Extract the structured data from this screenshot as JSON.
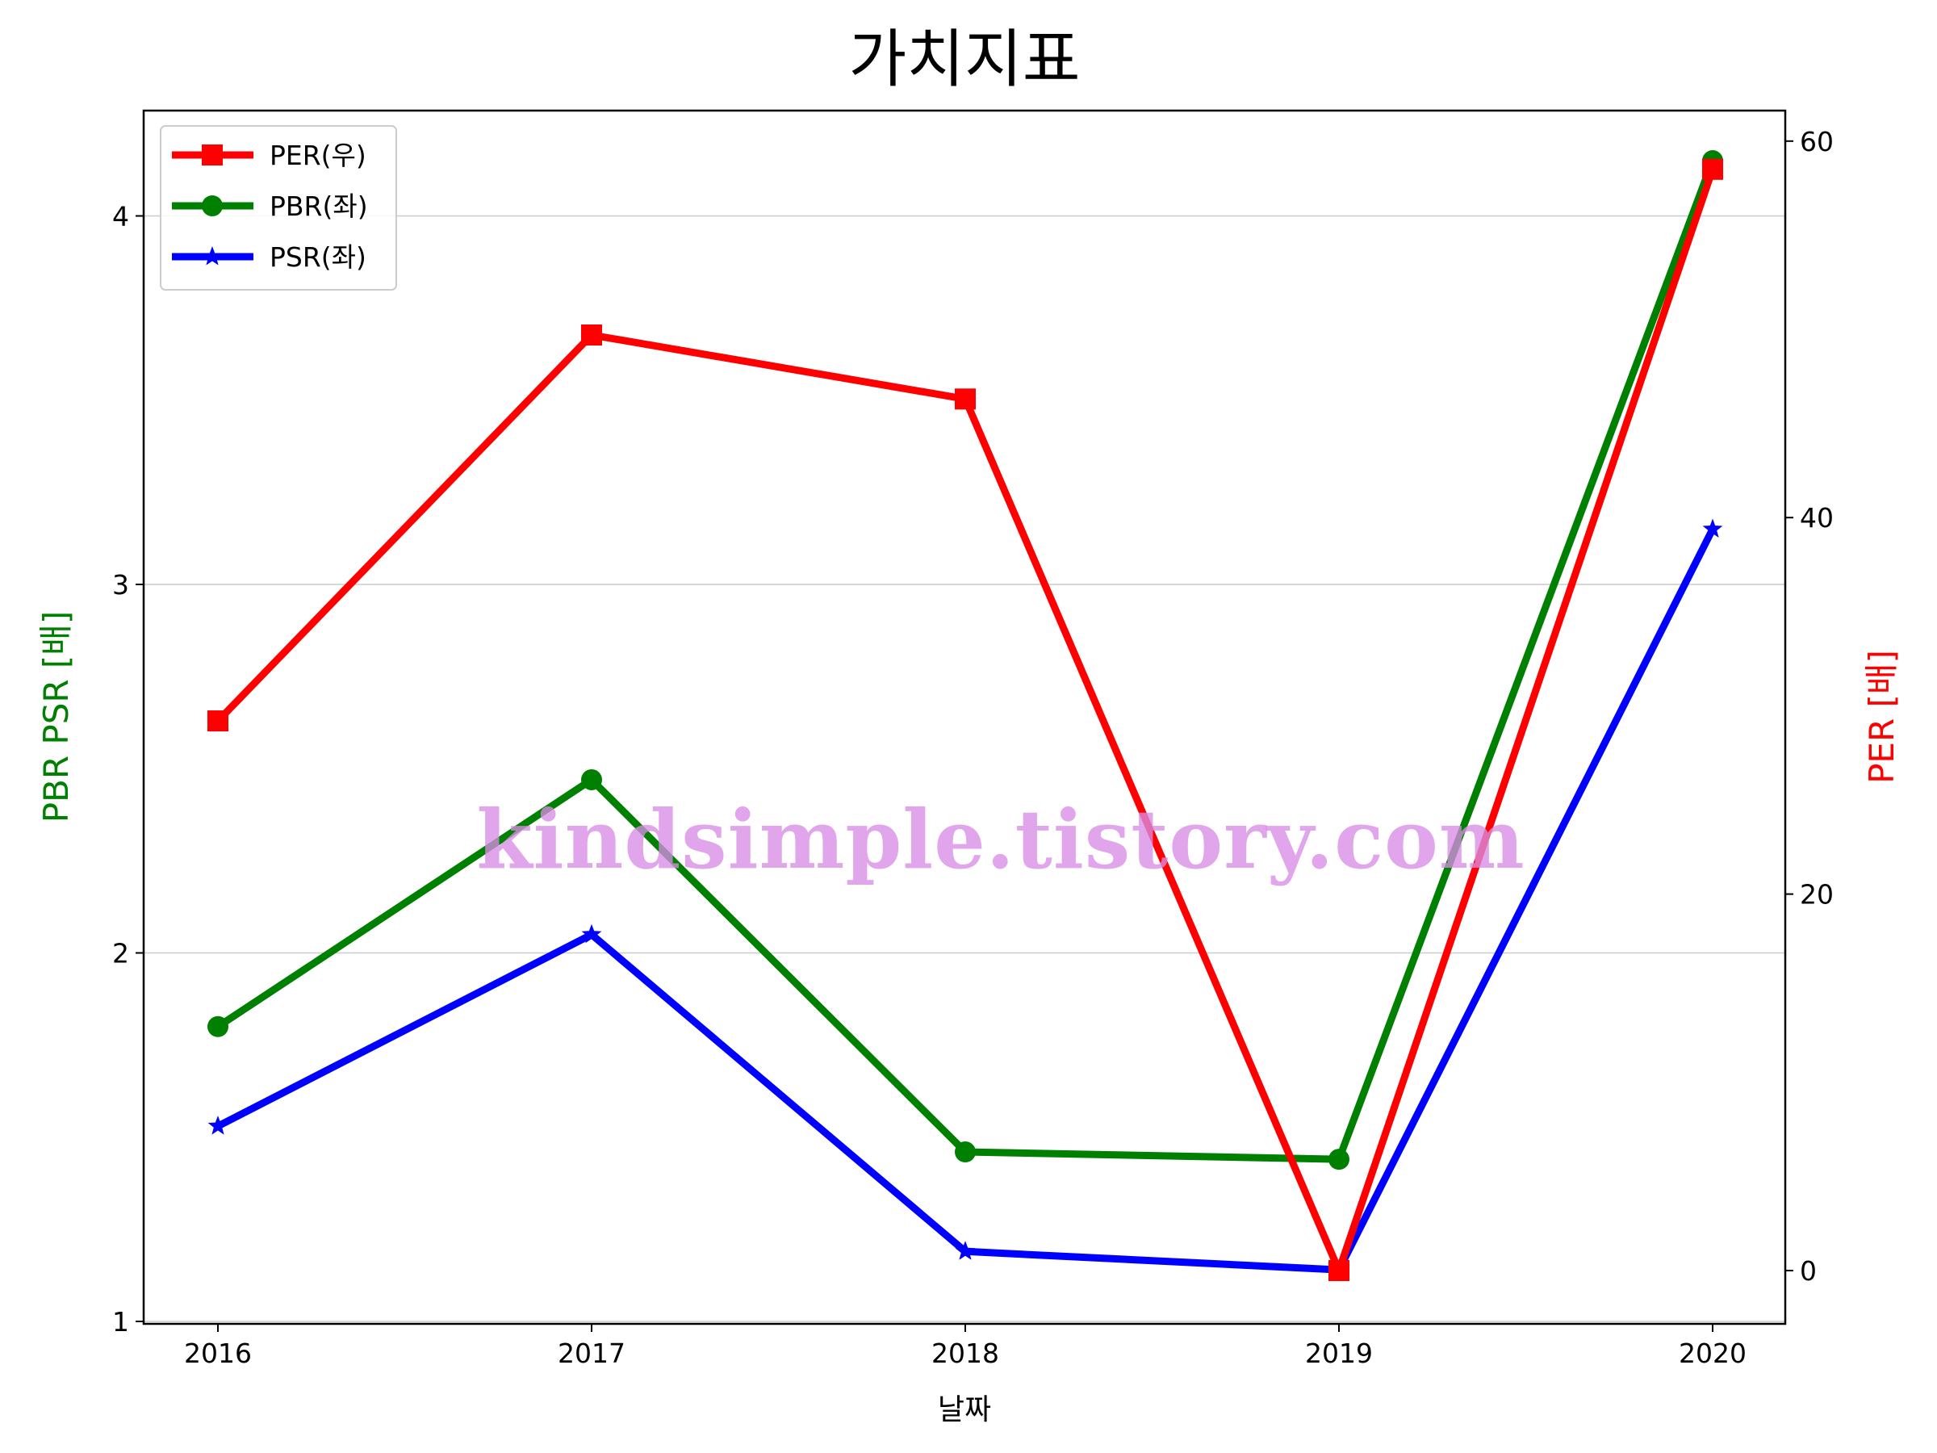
{
  "chart_data": {
    "type": "line",
    "title": "가치지표",
    "xlabel": "날짜",
    "ylabel_left": "PBR PSR [배]",
    "ylabel_right": "PER [배]",
    "categories": [
      "2016",
      "2017",
      "2018",
      "2019",
      "2020"
    ],
    "left_axis": {
      "ylim": [
        0.99,
        4.3
      ],
      "ticks": [
        1,
        2,
        3,
        4
      ],
      "tick_labels": [
        "1",
        "2",
        "3",
        "4"
      ]
    },
    "right_axis": {
      "ylim": [
        -3,
        61.5
      ],
      "ticks": [
        0,
        20,
        40,
        60
      ],
      "tick_labels": [
        "0",
        "20",
        "40",
        "60"
      ]
    },
    "series": [
      {
        "name": "PER(우)",
        "axis": "right",
        "color": "#ff0000",
        "marker": "square",
        "values": [
          29.2,
          49.7,
          46.3,
          0.0,
          58.5
        ]
      },
      {
        "name": "PBR(좌)",
        "axis": "left",
        "color": "#008000",
        "marker": "circle",
        "values": [
          1.8,
          2.47,
          1.46,
          1.44,
          4.15
        ]
      },
      {
        "name": "PSR(좌)",
        "axis": "left",
        "color": "#0000ff",
        "marker": "star",
        "values": [
          1.53,
          2.05,
          1.19,
          1.14,
          3.15
        ]
      }
    ],
    "grid": "horizontal",
    "legend_position": "top-left",
    "watermark": "kindsimple.tistory.com"
  }
}
